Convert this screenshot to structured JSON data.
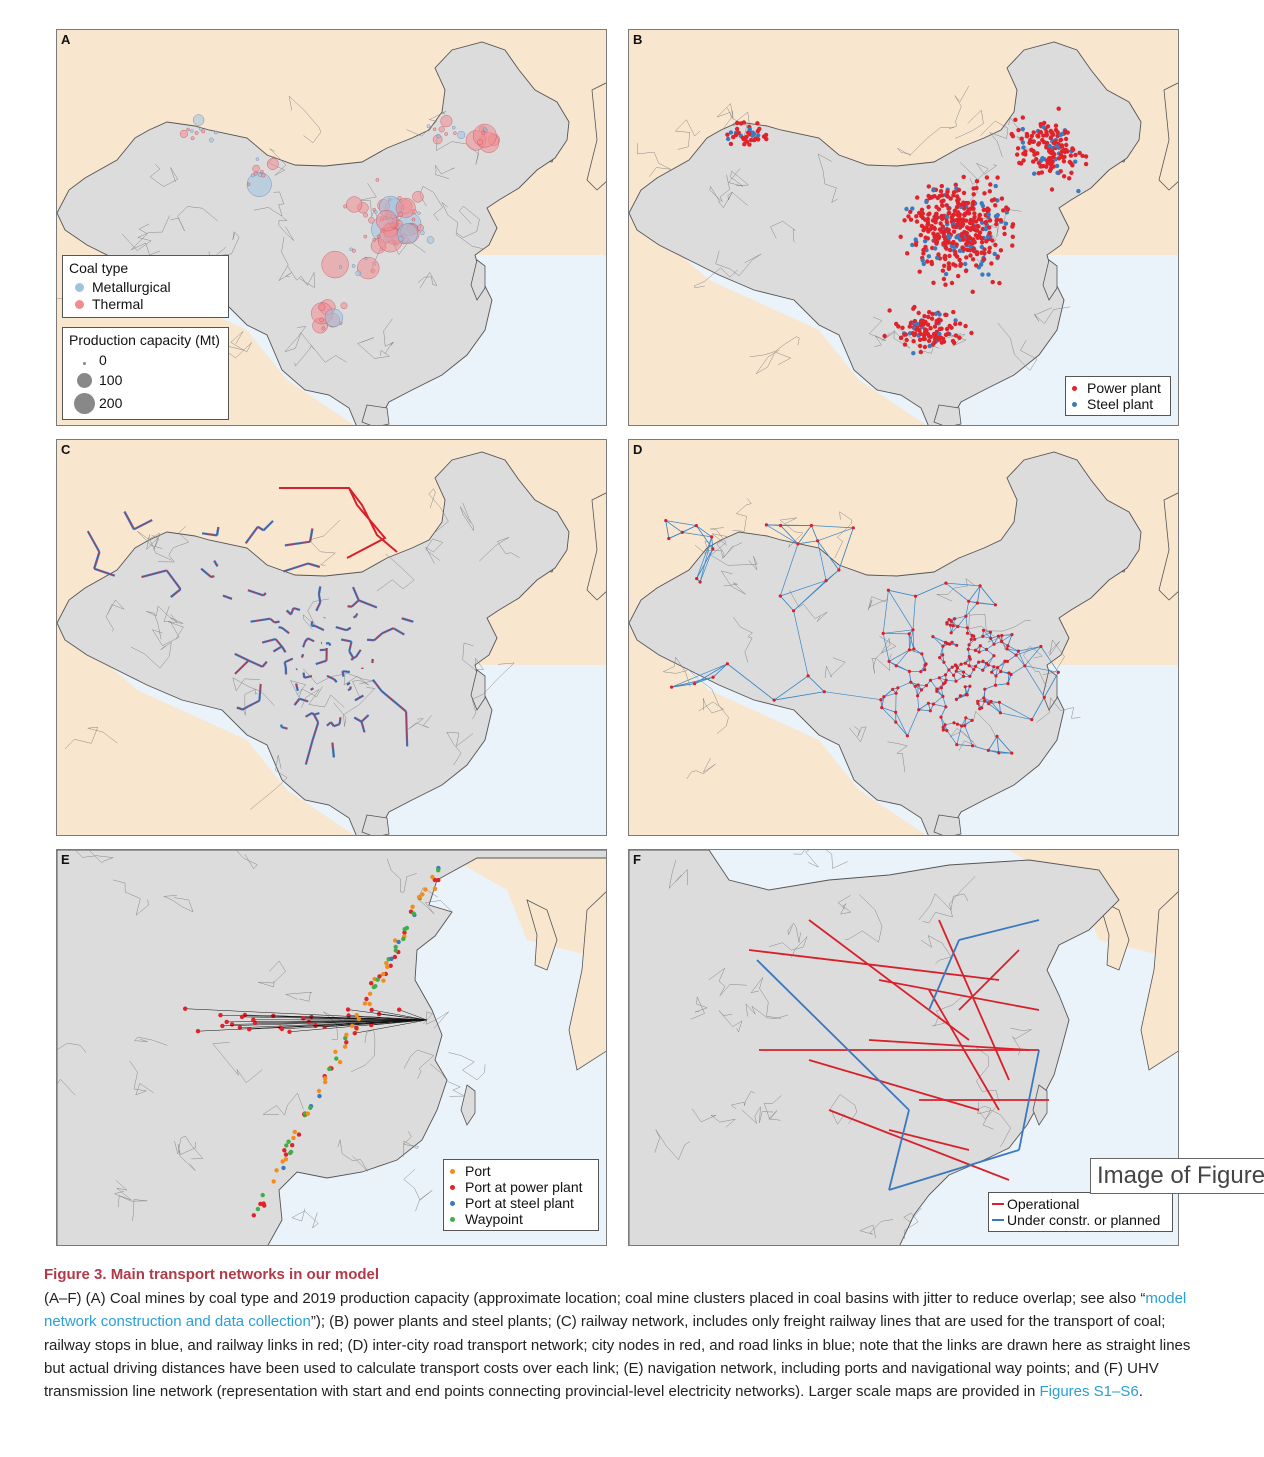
{
  "figure": {
    "colors": {
      "ocean": "#eaf2fa",
      "china_land": "#dcdcdc",
      "neighbor_land": "#f8e6cf",
      "border": "#555555",
      "metallurgical": "#9fc2e0",
      "thermal": "#f08c92",
      "power_plant": "#e0222a",
      "steel_plant": "#3a7bbf",
      "rail_stop": "#3a78c0",
      "rail_link": "#d8202a",
      "road_node": "#d8202a",
      "road_link": "#3a86c8",
      "port": "#f28c1a",
      "port_power": "#e0222a",
      "port_steel": "#3a78c0",
      "waypoint": "#3fae49",
      "uhv_operational": "#d8202a",
      "uhv_planned": "#3a78c0"
    },
    "panels": [
      {
        "letter": "A",
        "map_layer": "coal-mines",
        "legend": {
          "title1": "Coal type",
          "items": [
            "Metallurgical",
            "Thermal"
          ],
          "title2": "Production capacity (Mt)",
          "sizes": [
            "0",
            "100",
            "200"
          ]
        }
      },
      {
        "letter": "B",
        "map_layer": "power-steel-plants",
        "legend": {
          "items": [
            "Power plant",
            "Steel plant"
          ]
        }
      },
      {
        "letter": "C",
        "map_layer": "railway-network"
      },
      {
        "letter": "D",
        "map_layer": "road-network"
      },
      {
        "letter": "E",
        "map_layer": "navigation-network",
        "legend": {
          "items": [
            "Port",
            "Port at power plant",
            "Port at steel plant",
            "Waypoint"
          ]
        }
      },
      {
        "letter": "F",
        "map_layer": "uhv-network",
        "legend": {
          "items": [
            "Operational",
            "Under constr. or planned"
          ]
        }
      }
    ]
  },
  "overlay": {
    "text": "Image of Figure"
  },
  "caption": {
    "label": "Figure 3.",
    "title": "Main transport networks in our model",
    "part1": "(A–F) (A) Coal mines by coal type and 2019 production capacity (approximate location; coal mine clusters placed in coal basins with jitter to reduce overlap; see also “",
    "link1": "model network construction and data collection",
    "part2": "”); (B) power plants and steel plants; (C) railway network, includes only freight railway lines that are used for the transport of coal; railway stops in blue, and railway links in red; (D) inter-city road transport network; city nodes in red, and road links in blue; note that the links are drawn here as straight lines but actual driving distances have been used to calculate transport costs over each link; (E) navigation network, including ports and navigational way points; and (F) UHV transmission line network (representation with start and end points connecting provincial-level electricity networks). Larger scale maps are provided in ",
    "link2": "Figures S1–S6",
    "part3": "."
  }
}
